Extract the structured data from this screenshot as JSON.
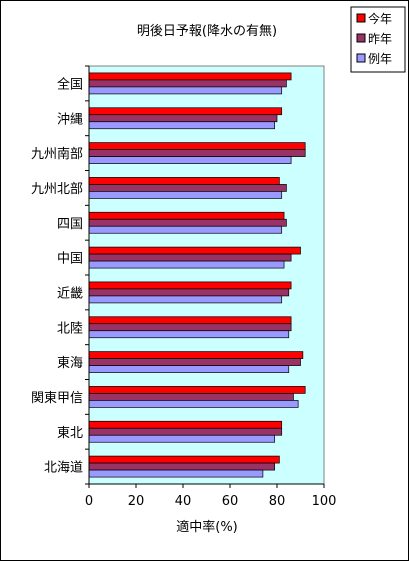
{
  "chart_data": {
    "type": "bar",
    "orientation": "horizontal",
    "title": "明後日予報(降水の有無)",
    "xlabel": "適中率(%)",
    "ylabel": "",
    "xlim": [
      0,
      100
    ],
    "x_ticks": [
      "0",
      "20",
      "40",
      "60",
      "80",
      "100"
    ],
    "grid": false,
    "legend_position": "top-right",
    "plot_background": "#ccffff",
    "categories": [
      "全国",
      "沖縄",
      "九州南部",
      "九州北部",
      "四国",
      "中国",
      "近畿",
      "北陸",
      "東海",
      "関東甲信",
      "東北",
      "北海道"
    ],
    "series": [
      {
        "name": "今年",
        "color": "#ff0000",
        "values": [
          86,
          82,
          92,
          81,
          83,
          90,
          86,
          86,
          91,
          92,
          82,
          81
        ]
      },
      {
        "name": "昨年",
        "color": "#993366",
        "values": [
          84,
          80,
          92,
          84,
          84,
          86,
          85,
          86,
          90,
          87,
          82,
          79
        ]
      },
      {
        "name": "例年",
        "color": "#9999ff",
        "values": [
          82,
          79,
          86,
          82,
          82,
          83,
          82,
          85,
          85,
          89,
          79,
          74
        ]
      }
    ]
  }
}
